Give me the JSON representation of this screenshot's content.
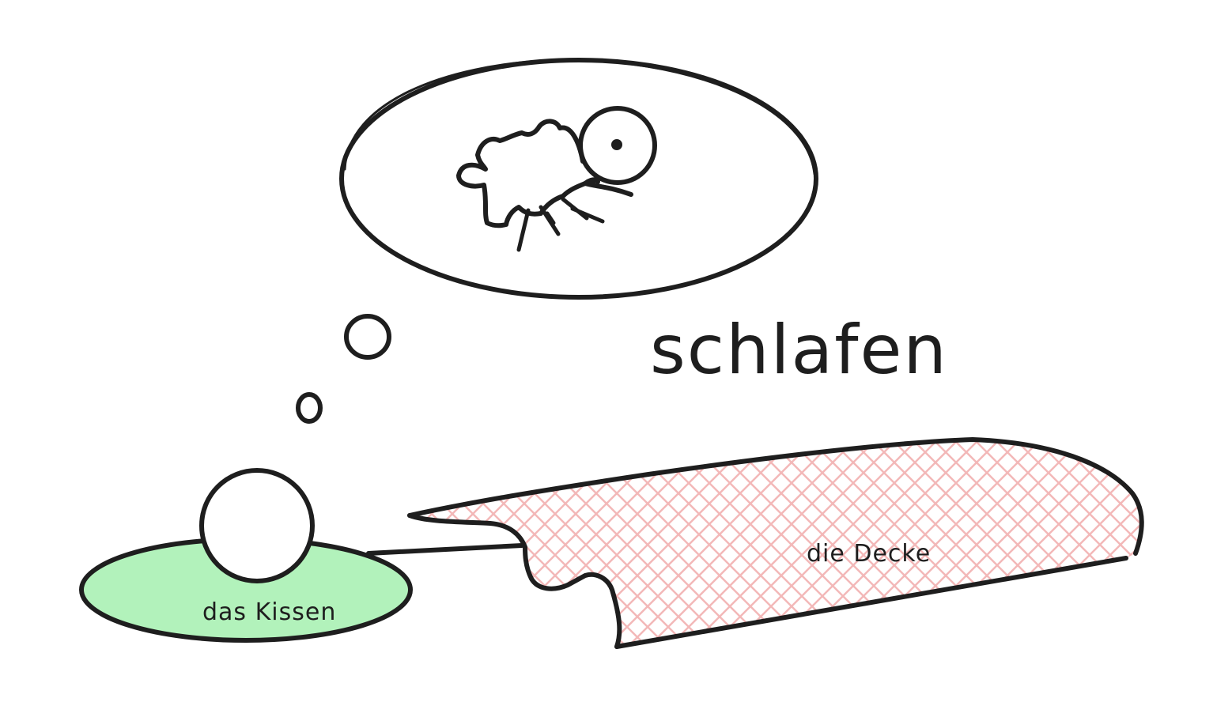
{
  "title": "schlafen",
  "labels": {
    "kissen": "das Kissen",
    "decke": "die Decke"
  },
  "colors": {
    "stroke": "#1e1e1e",
    "pillow_fill": "#b2f2bb",
    "blanket_hatch": "#ffc9c9",
    "background": "#ffffff"
  },
  "icons": [
    "thought-bubble",
    "sheep-drawing",
    "pillow",
    "head",
    "blanket"
  ]
}
